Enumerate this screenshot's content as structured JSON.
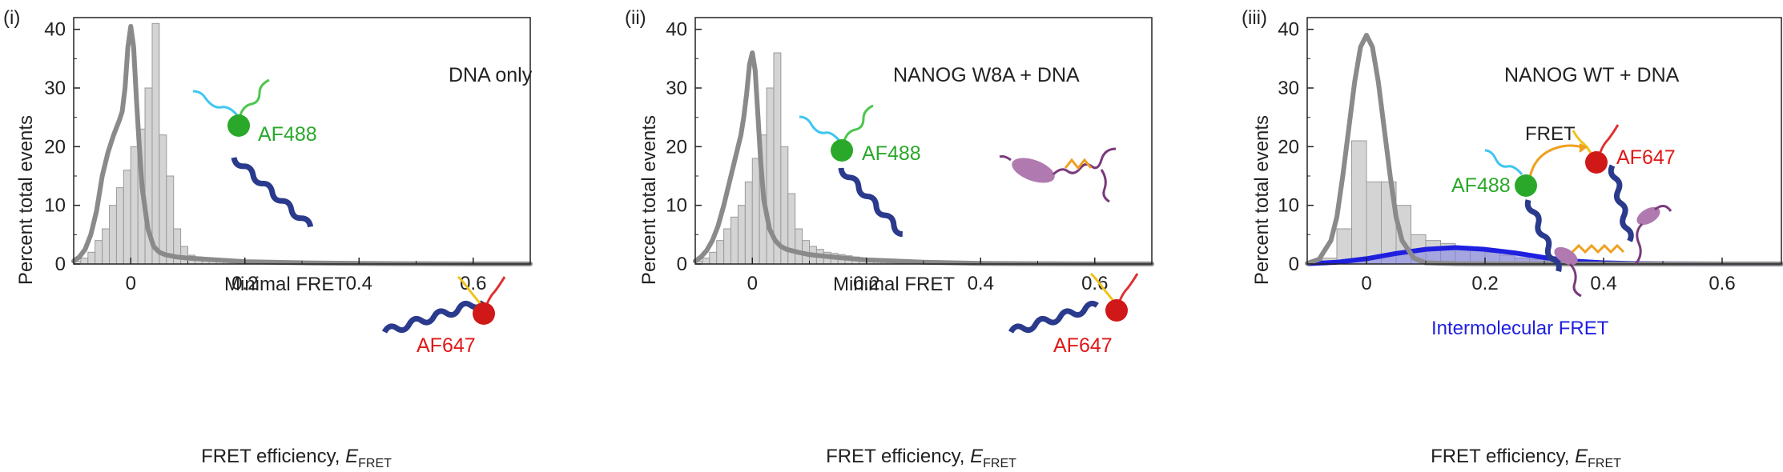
{
  "chart_data": [
    {
      "type": "bar",
      "panel_label": "(i)",
      "annotation": "DNA only",
      "region_label": "Minimal FRET",
      "dye_labels": [
        "AF488",
        "AF647"
      ],
      "xlabel": "FRET efficiency, ",
      "xlabel_italic": "E",
      "xlabel_sub": "FRET",
      "ylabel": "Percent total events",
      "xlim": [
        -0.1,
        0.7
      ],
      "ylim": [
        0,
        42
      ],
      "xticks": [
        "0",
        "0.2",
        "0.4",
        "0.6"
      ],
      "xtick_values": [
        0,
        0.2,
        0.4,
        0.6
      ],
      "yticks": [
        "0",
        "10",
        "20",
        "30",
        "40"
      ],
      "ytick_values": [
        0,
        10,
        20,
        30,
        40
      ],
      "bin_edges_start": -0.1,
      "bin_width": 0.0125,
      "histogram": [
        0.5,
        1,
        2,
        4,
        6,
        10,
        13,
        16,
        20,
        23,
        30,
        41,
        22,
        15,
        6,
        3,
        1.5,
        1.2,
        1,
        0.9,
        0.8,
        0.7,
        0.6,
        0.5,
        0.5,
        0.4,
        0.4,
        0.3,
        0.3,
        0.3,
        0.2,
        0.2,
        0.2,
        0.2,
        0.1,
        0.1,
        0.1,
        0.1,
        0.1,
        0.1,
        0.1,
        0.1,
        0.1,
        0.1,
        0.05,
        0.05,
        0.05,
        0.05,
        0.05,
        0.05,
        0.05,
        0.05,
        0.05,
        0.05,
        0.05,
        0.05,
        0.05,
        0.05,
        0.05,
        0.05,
        0.05,
        0.05,
        0.05,
        0.05
      ],
      "fit": {
        "x": [
          -0.1,
          -0.09,
          -0.08,
          -0.07,
          -0.06,
          -0.05,
          -0.04,
          -0.03,
          -0.02,
          -0.015,
          -0.01,
          -0.005,
          0,
          0.005,
          0.01,
          0.015,
          0.02,
          0.03,
          0.04,
          0.05,
          0.06,
          0.08,
          0.1,
          0.15,
          0.2,
          0.3,
          0.4,
          0.5,
          0.6,
          0.7
        ],
        "y": [
          0.5,
          1.2,
          2.5,
          5,
          9,
          15,
          19,
          22,
          24.5,
          26,
          30,
          37,
          40.5,
          37,
          28,
          20,
          13,
          6,
          3,
          2,
          1.6,
          1.2,
          1,
          0.7,
          0.4,
          0.2,
          0.1,
          0.05,
          0.02,
          0.01
        ]
      }
    },
    {
      "type": "bar",
      "panel_label": "(ii)",
      "annotation": "NANOG W8A + DNA",
      "region_label": "Minimal FRET",
      "dye_labels": [
        "AF488",
        "AF647"
      ],
      "xlabel": "FRET efficiency, ",
      "xlabel_italic": "E",
      "xlabel_sub": "FRET",
      "ylabel": "Percent total events",
      "xlim": [
        -0.1,
        0.7
      ],
      "ylim": [
        0,
        42
      ],
      "xticks": [
        "0",
        "0.2",
        "0.4",
        "0.6"
      ],
      "xtick_values": [
        0,
        0.2,
        0.4,
        0.6
      ],
      "yticks": [
        "0",
        "10",
        "20",
        "30",
        "40"
      ],
      "ytick_values": [
        0,
        10,
        20,
        30,
        40
      ],
      "bin_edges_start": -0.1,
      "bin_width": 0.0125,
      "histogram": [
        0.5,
        1,
        2,
        4,
        6,
        8,
        10,
        14,
        18,
        22,
        30,
        36,
        20,
        12,
        6,
        4,
        3,
        2.5,
        2,
        1.8,
        1.6,
        1.4,
        1.2,
        1.0,
        0.9,
        0.8,
        0.7,
        0.6,
        0.5,
        0.4,
        0.3,
        0.3,
        0.2,
        0.2,
        0.2,
        0.1,
        0.1,
        0.1,
        0.1,
        0.1,
        0.1,
        0.1,
        0.1,
        0.1,
        0.05,
        0.05,
        0.05,
        0.05,
        0.05,
        0.05,
        0.05,
        0.05,
        0.05,
        0.05,
        0.05,
        0.05,
        0.05,
        0.05,
        0.05,
        0.05,
        0.05,
        0.05,
        0.05,
        0.05
      ],
      "fit": {
        "x": [
          -0.1,
          -0.09,
          -0.08,
          -0.07,
          -0.06,
          -0.05,
          -0.04,
          -0.03,
          -0.02,
          -0.015,
          -0.01,
          -0.005,
          0,
          0.005,
          0.01,
          0.015,
          0.02,
          0.03,
          0.04,
          0.05,
          0.06,
          0.08,
          0.1,
          0.15,
          0.2,
          0.3,
          0.4,
          0.5,
          0.6,
          0.7
        ],
        "y": [
          0.5,
          1.2,
          2.3,
          4,
          6.5,
          10,
          14,
          18,
          22,
          25,
          29,
          34,
          36,
          33,
          25,
          17,
          11,
          6,
          4,
          3,
          2.5,
          2,
          1.6,
          1.1,
          0.7,
          0.3,
          0.1,
          0.05,
          0.02,
          0.01
        ]
      }
    },
    {
      "type": "bar",
      "panel_label": "(iii)",
      "annotation": "NANOG WT + DNA",
      "region_label": "Intermolecular FRET",
      "fret_label": "FRET",
      "dye_labels": [
        "AF488",
        "AF647"
      ],
      "xlabel": "FRET efficiency, ",
      "xlabel_italic": "E",
      "xlabel_sub": "FRET",
      "ylabel": "Percent total events",
      "xlim": [
        -0.1,
        0.7
      ],
      "ylim": [
        0,
        42
      ],
      "xticks": [
        "0",
        "0.2",
        "0.4",
        "0.6"
      ],
      "xtick_values": [
        0,
        0.2,
        0.4,
        0.6
      ],
      "yticks": [
        "0",
        "10",
        "20",
        "30",
        "40"
      ],
      "ytick_values": [
        0,
        10,
        20,
        30,
        40
      ],
      "bin_edges_start": -0.075,
      "bin_width": 0.025,
      "histogram": [
        1,
        6,
        21,
        14,
        14,
        10,
        5,
        4,
        3.5,
        3,
        2.5,
        2,
        1.5,
        1,
        0.8,
        0.6,
        0.4,
        0.3,
        0.2,
        0.1,
        0.1
      ],
      "fit": {
        "x": [
          -0.1,
          -0.08,
          -0.06,
          -0.05,
          -0.04,
          -0.03,
          -0.02,
          -0.01,
          0,
          0.01,
          0.02,
          0.03,
          0.04,
          0.05,
          0.06,
          0.08,
          0.1,
          0.15,
          0.2,
          0.3,
          0.4,
          0.5,
          0.6,
          0.7
        ],
        "y": [
          0.1,
          0.8,
          4,
          8,
          15,
          23,
          31,
          37,
          39,
          37,
          31,
          23,
          15,
          8,
          4,
          1,
          0.2,
          0.05,
          0.02,
          0.01,
          0.01,
          0.01,
          0.01,
          0.01
        ]
      },
      "fit2": {
        "x": [
          -0.1,
          -0.05,
          0,
          0.05,
          0.1,
          0.15,
          0.2,
          0.25,
          0.3,
          0.35,
          0.4,
          0.45,
          0.5,
          0.55,
          0.6,
          0.7
        ],
        "y": [
          0.05,
          0.3,
          0.9,
          1.8,
          2.5,
          2.8,
          2.5,
          1.9,
          1.1,
          0.5,
          0.2,
          0.08,
          0.03,
          0.01,
          0.005,
          0.0
        ]
      }
    }
  ],
  "colors": {
    "bar_fill": "#d4d4d4",
    "bar_stroke": "#9a9a9a",
    "fit_line": "#8a8a8a",
    "fit2_line": "#1f1fe0",
    "fit2_fill": "#7d7de8",
    "af488": "#2aa82a",
    "af647": "#e01818",
    "dna": "#2a3a8c",
    "protein": "#a06aa0"
  }
}
